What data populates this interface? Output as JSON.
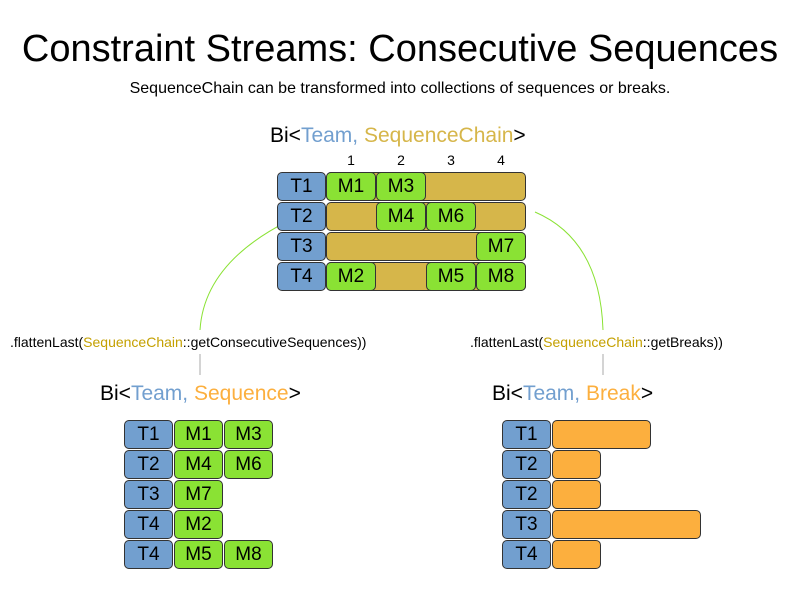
{
  "title": "Constraint Streams: Consecutive Sequences",
  "subtitle": "SequenceChain can be transformed into collections of sequences or breaks.",
  "colors": {
    "team": "#729fcf",
    "match": "#8ae234",
    "chain": "#d6b64a",
    "chain_text": "#d6b64a",
    "break": "#fcaf3e",
    "break_text": "#fcaf3e",
    "connector": "#8ae234"
  },
  "top": {
    "header": {
      "prefix": "Bi<",
      "team": "Team",
      ",": ",",
      "sep": ", ",
      "type": "SequenceChain",
      "suffix": ">"
    },
    "columns": [
      "1",
      "2",
      "3",
      "4"
    ],
    "rows": [
      {
        "team": "T1",
        "cells": [
          "M1",
          "M3",
          "",
          ""
        ]
      },
      {
        "team": "T2",
        "cells": [
          "",
          "M4",
          "M6",
          ""
        ]
      },
      {
        "team": "T3",
        "cells": [
          "",
          "",
          "",
          "M7"
        ]
      },
      {
        "team": "T4",
        "cells": [
          "M2",
          "",
          "M5",
          "M8"
        ]
      }
    ]
  },
  "left": {
    "call": {
      "prefix": ".flattenLast(",
      "cls": "SequenceChain",
      "suffix": "::getConsecutiveSequences))"
    },
    "header": {
      "prefix": "Bi<",
      "team": "Team",
      "sep": ", ",
      "type": "Sequence",
      "suffix": ">"
    },
    "rows": [
      {
        "team": "T1",
        "items": [
          "M1",
          "M3"
        ]
      },
      {
        "team": "T2",
        "items": [
          "M4",
          "M6"
        ]
      },
      {
        "team": "T3",
        "items": [
          "M7"
        ]
      },
      {
        "team": "T4",
        "items": [
          "M2"
        ]
      },
      {
        "team": "T4",
        "items": [
          "M5",
          "M8"
        ]
      }
    ]
  },
  "right": {
    "call": {
      "prefix": ".flattenLast(",
      "cls": "SequenceChain",
      "suffix": "::getBreaks))"
    },
    "header": {
      "prefix": "Bi<",
      "team": "Team",
      "sep": ", ",
      "type": "Break",
      "suffix": ">"
    },
    "rows": [
      {
        "team": "T1",
        "length": 2
      },
      {
        "team": "T2",
        "length": 1
      },
      {
        "team": "T2",
        "length": 1
      },
      {
        "team": "T3",
        "length": 3
      },
      {
        "team": "T4",
        "length": 1
      }
    ]
  }
}
